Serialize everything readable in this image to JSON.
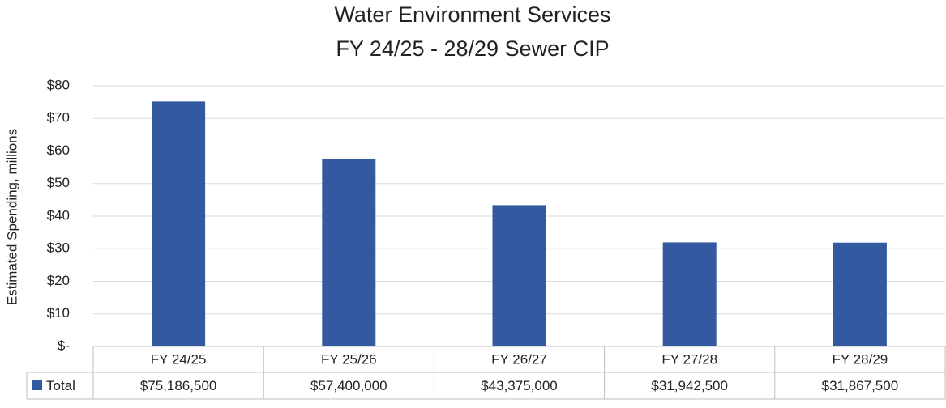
{
  "chart_data": {
    "type": "bar",
    "title": "Water Environment Services",
    "subtitle": "FY 24/25 - 28/29 Sewer CIP",
    "y_label": "Estimated Spending, millions",
    "categories": [
      "FY 24/25",
      "FY 25/26",
      "FY 26/27",
      "FY 27/28",
      "FY 28/29"
    ],
    "series": [
      {
        "name": "Total",
        "color": "#335aa1",
        "values": [
          75.1865,
          57.4,
          43.375,
          31.9425,
          31.8675
        ],
        "value_labels": [
          "$75,186,500",
          "$57,400,000",
          "$43,375,000",
          "$31,942,500",
          "$31,867,500"
        ]
      }
    ],
    "ylim": [
      0,
      80
    ],
    "yticks": [
      {
        "value": 0,
        "label": "$-"
      },
      {
        "value": 10,
        "label": "$10"
      },
      {
        "value": 20,
        "label": "$20"
      },
      {
        "value": 30,
        "label": "$30"
      },
      {
        "value": 40,
        "label": "$40"
      },
      {
        "value": 50,
        "label": "$50"
      },
      {
        "value": 60,
        "label": "$60"
      },
      {
        "value": 70,
        "label": "$70"
      },
      {
        "value": 80,
        "label": "$80"
      }
    ],
    "grid": true
  }
}
